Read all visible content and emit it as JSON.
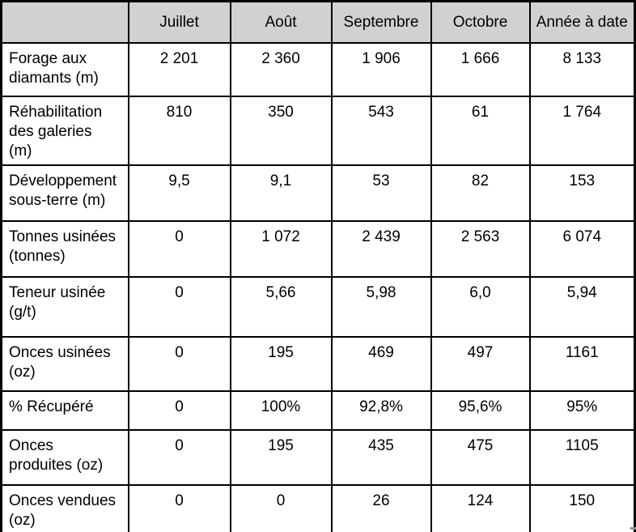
{
  "table": {
    "columns": [
      "",
      "Juillet",
      "Août",
      "Septembre",
      "Octobre",
      "Année à date"
    ],
    "rows": [
      {
        "label": "Forage aux diamants (m)",
        "values": [
          "2 201",
          "2 360",
          "1 906",
          "1 666",
          "8 133"
        ]
      },
      {
        "label": "Réhabilitation des galeries (m)",
        "values": [
          "810",
          "350",
          "543",
          "61",
          "1 764"
        ]
      },
      {
        "label": "Développement sous-terre (m)",
        "values": [
          "9,5",
          "9,1",
          "53",
          "82",
          "153"
        ]
      },
      {
        "label": "Tonnes usinées (tonnes)",
        "values": [
          "0",
          "1 072",
          "2 439",
          "2 563",
          "6 074"
        ]
      },
      {
        "label": "Teneur usinée (g/t)",
        "values": [
          "0",
          "5,66",
          "5,98",
          "6,0",
          "5,94"
        ]
      },
      {
        "label": "Onces usinées (oz)",
        "values": [
          "0",
          "195",
          "469",
          "497",
          "1161"
        ]
      },
      {
        "label": "% Récupéré",
        "values": [
          "0",
          "100%",
          "92,8%",
          "95,6%",
          "95%"
        ]
      },
      {
        "label": "Onces produites (oz)",
        "values": [
          "0",
          "195",
          "435",
          "475",
          "1105"
        ]
      },
      {
        "label": "Onces vendues (oz)",
        "values": [
          "0",
          "0",
          "26",
          "124",
          "150"
        ]
      }
    ]
  },
  "colors": {
    "header_bg": "#d1d1d1",
    "border": "#000000",
    "text": "#000000"
  }
}
